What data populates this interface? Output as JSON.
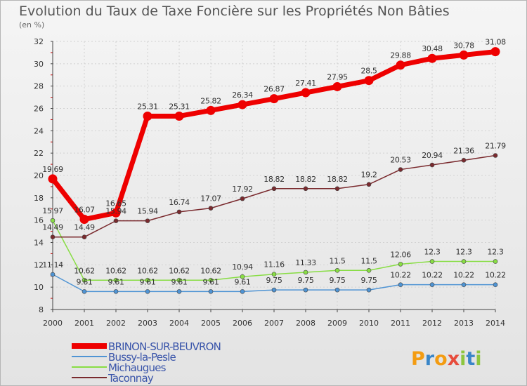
{
  "chart_data": {
    "type": "line",
    "title": "Evolution du Taux de Taxe Foncière sur les Propriétés Non Bâties",
    "ylabel": "(en %)",
    "xlabel": "",
    "ylim": [
      8,
      32
    ],
    "yticks": [
      8,
      10,
      12,
      14,
      16,
      18,
      20,
      22,
      24,
      26,
      28,
      30,
      32
    ],
    "categories": [
      "2000",
      "2001",
      "2002",
      "2003",
      "2004",
      "2005",
      "2006",
      "2007",
      "2008",
      "2009",
      "2010",
      "2011",
      "2012",
      "2013",
      "2014"
    ],
    "grid": true,
    "legend_position": "bottom-left",
    "series": [
      {
        "name": "BRINON-SUR-BEUVRON",
        "color": "#ee0000",
        "values": [
          19.69,
          16.07,
          16.65,
          25.31,
          25.31,
          25.82,
          26.34,
          26.87,
          27.41,
          27.95,
          28.5,
          29.88,
          30.48,
          30.78,
          31.08
        ],
        "labels": [
          "19.69",
          "16.07",
          "16.65",
          "25.31",
          "25.31",
          "25.82",
          "26.34",
          "26.87",
          "27.41",
          "27.95",
          "28.5",
          "29.88",
          "30.48",
          "30.78",
          "31.08"
        ]
      },
      {
        "name": "Bussy-la-Pesle",
        "color": "#4f94d4",
        "values": [
          11.14,
          9.61,
          9.61,
          9.61,
          9.61,
          9.61,
          9.61,
          9.75,
          9.75,
          9.75,
          9.75,
          10.22,
          10.22,
          10.22,
          10.22
        ],
        "labels": [
          "11.14",
          "9.61",
          "9.61",
          "9.61",
          "9.61",
          "9.61",
          "9.61",
          "9.75",
          "9.75",
          "9.75",
          "9.75",
          "10.22",
          "10.22",
          "10.22",
          "10.22"
        ]
      },
      {
        "name": "Michaugues",
        "color": "#88dd44",
        "values": [
          15.97,
          10.62,
          10.62,
          10.62,
          10.62,
          10.62,
          10.94,
          11.16,
          11.33,
          11.5,
          11.5,
          12.06,
          12.3,
          12.3,
          12.3
        ],
        "labels": [
          "15.97",
          "10.62",
          "10.62",
          "10.62",
          "10.62",
          "10.62",
          "10.94",
          "11.16",
          "11.33",
          "11.5",
          "11.5",
          "12.06",
          "12.3",
          "12.3",
          "12.3"
        ]
      },
      {
        "name": "Taconnay",
        "color": "#7a2a2e",
        "values": [
          14.49,
          14.49,
          15.94,
          15.94,
          16.74,
          17.07,
          17.92,
          18.82,
          18.82,
          18.82,
          19.2,
          20.53,
          20.94,
          21.36,
          21.79
        ],
        "labels": [
          "14.49",
          "14.49",
          "15.94",
          "15.94",
          "16.74",
          "17.07",
          "17.92",
          "18.82",
          "18.82",
          "18.82",
          "19.2",
          "20.53",
          "20.94",
          "21.36",
          "21.79"
        ]
      }
    ]
  },
  "brand": {
    "letters": [
      "P",
      "r",
      "o",
      "x",
      "i",
      "t",
      "i"
    ],
    "colors": [
      "#f39c12",
      "#3a86c8",
      "#f39c12",
      "#e74c3c",
      "#8dc63f",
      "#3a86c8",
      "#8dc63f"
    ]
  }
}
